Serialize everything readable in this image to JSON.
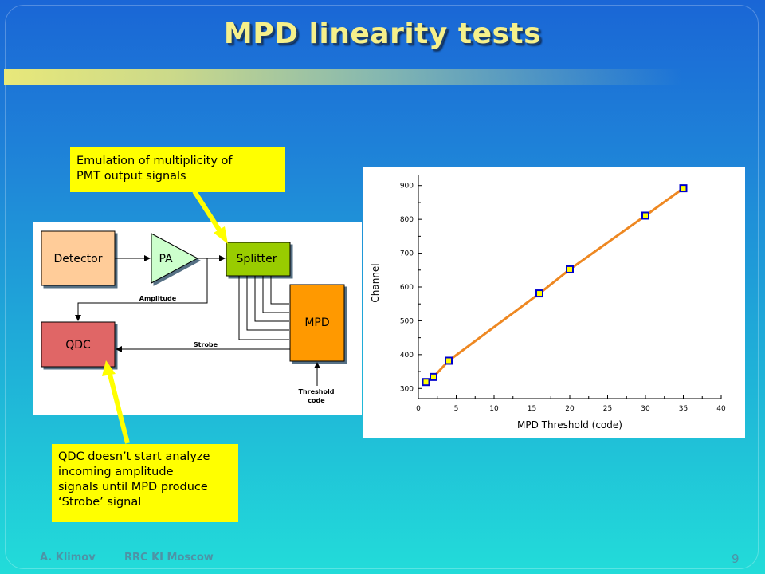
{
  "title": "MPD linearity tests",
  "callouts": {
    "top": [
      "Emulation of multiplicity of",
      "PMT output signals"
    ],
    "bottom": [
      "QDC doesn’t start analyze",
      "incoming amplitude",
      "signals until MPD produce",
      "‘Strobe’ signal"
    ]
  },
  "diagram": {
    "detector": "Detector",
    "pa": "PA",
    "splitter": "Splitter",
    "qdc": "QDC",
    "mpd": "MPD",
    "amplitude": "Amplitude",
    "strobe": "Strobe",
    "threshold_line1": "Threshold",
    "threshold_line2": "code"
  },
  "colors": {
    "detector": "#ffcc99",
    "pa": "#ccffcc",
    "splitter": "#99cc00",
    "qdc": "#e06666",
    "mpd": "#ff9900",
    "callout": "#ffff00",
    "arrow": "#ffff00"
  },
  "chart_data": {
    "type": "line",
    "title": "",
    "xlabel": "MPD Threshold (code)",
    "ylabel": "Channel",
    "xlim": [
      0,
      40
    ],
    "ylim": [
      270,
      930
    ],
    "xticks": [
      0,
      5,
      10,
      15,
      20,
      25,
      30,
      35,
      40
    ],
    "yticks": [
      300,
      400,
      500,
      600,
      700,
      800,
      900
    ],
    "grid": false,
    "series": [
      {
        "x": [
          1,
          2,
          4,
          16,
          20,
          30,
          35
        ],
        "y": [
          319,
          334,
          382,
          581,
          652,
          811,
          892
        ],
        "color": "#ee8822",
        "marker_fill": "#ffff00",
        "marker_edge": "#0000cc"
      }
    ]
  },
  "footer": {
    "author": "A. Klimov",
    "org": "RRC KI  Moscow",
    "page": "9"
  }
}
